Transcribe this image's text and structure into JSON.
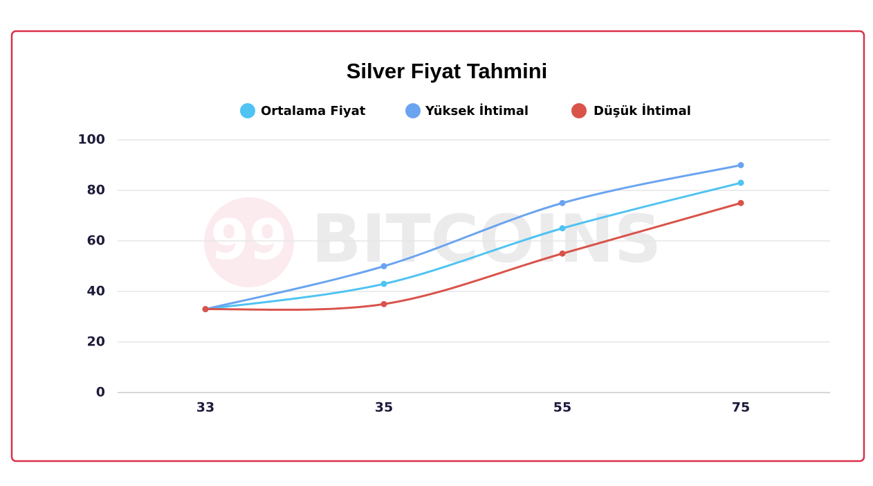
{
  "chart_data": {
    "type": "line",
    "title": "Silver Fiyat Tahmini",
    "watermark": [
      "99",
      "BITCOINS"
    ],
    "categories": [
      "33",
      "35",
      "55",
      "75"
    ],
    "series": [
      {
        "name": "Ortalama Fiyat",
        "color": "#4fc3f2",
        "values": [
          33,
          43,
          65,
          83
        ]
      },
      {
        "name": "Yüksek  İhtimal",
        "color": "#6aa4f0",
        "values": [
          33,
          50,
          75,
          90
        ]
      },
      {
        "name": "Düşük İhtimal",
        "color": "#d9534a",
        "values": [
          33,
          35,
          55,
          75
        ]
      }
    ],
    "ylim": [
      0,
      100
    ],
    "yticks": [
      0,
      20,
      40,
      60,
      80,
      100
    ],
    "grid": true,
    "smooth": true
  }
}
